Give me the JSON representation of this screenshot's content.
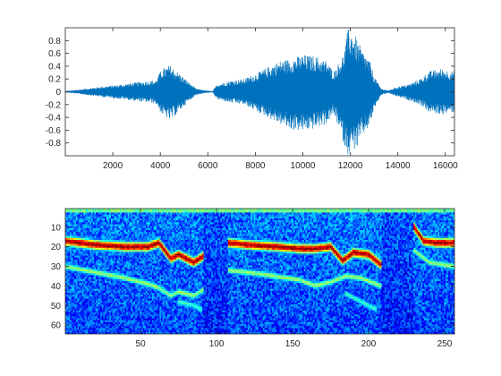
{
  "chart_data": [
    {
      "type": "line",
      "title": "",
      "xlabel": "",
      "ylabel": "",
      "xlim": [
        1,
        16384
      ],
      "ylim": [
        -1,
        1
      ],
      "grid": false,
      "color": "#0072BD",
      "xticks": [
        2000,
        4000,
        6000,
        8000,
        10000,
        12000,
        14000,
        16000
      ],
      "yticks": [
        -0.8,
        -0.6,
        -0.4,
        -0.2,
        0,
        0.2,
        0.4,
        0.6,
        0.8
      ],
      "xtick_labels": [
        "2000",
        "4000",
        "6000",
        "8000",
        "10000",
        "12000",
        "14000",
        "16000"
      ],
      "ytick_labels": [
        "-0.8",
        "-0.6",
        "-0.4",
        "-0.2",
        "0",
        "0.2",
        "0.4",
        "0.6",
        "0.8"
      ],
      "envelope": {
        "x": [
          0,
          500,
          1500,
          2500,
          3000,
          3500,
          3800,
          4050,
          4400,
          4700,
          5000,
          5500,
          5900,
          6200,
          6400,
          7000,
          7500,
          8000,
          8500,
          9000,
          9500,
          10000,
          10500,
          11000,
          11300,
          11500,
          11700,
          11900,
          12100,
          12300,
          12500,
          12800,
          13000,
          13300,
          13600,
          14000,
          14500,
          15000,
          15300,
          15800,
          16384
        ],
        "upper": [
          0.01,
          0.03,
          0.08,
          0.12,
          0.15,
          0.17,
          0.18,
          0.35,
          0.42,
          0.32,
          0.22,
          0.05,
          0.02,
          0.01,
          0.12,
          0.18,
          0.2,
          0.28,
          0.38,
          0.48,
          0.52,
          0.58,
          0.56,
          0.48,
          0.32,
          0.45,
          0.58,
          0.98,
          0.95,
          0.8,
          0.65,
          0.5,
          0.25,
          0.05,
          0.02,
          0.08,
          0.12,
          0.22,
          0.32,
          0.36,
          0.32
        ],
        "lower": [
          -0.01,
          -0.03,
          -0.08,
          -0.12,
          -0.15,
          -0.17,
          -0.18,
          -0.35,
          -0.45,
          -0.35,
          -0.22,
          -0.05,
          -0.02,
          -0.01,
          -0.12,
          -0.18,
          -0.2,
          -0.3,
          -0.4,
          -0.5,
          -0.6,
          -0.62,
          -0.58,
          -0.5,
          -0.35,
          -0.55,
          -0.8,
          -0.98,
          -0.92,
          -0.88,
          -0.7,
          -0.55,
          -0.28,
          -0.05,
          -0.02,
          -0.08,
          -0.14,
          -0.22,
          -0.32,
          -0.36,
          -0.32
        ]
      }
    },
    {
      "type": "heatmap",
      "title": "",
      "xlabel": "",
      "ylabel": "",
      "xlim": [
        0.5,
        256.5
      ],
      "ylim": [
        0.5,
        64.5
      ],
      "y_direction": "reverse",
      "colormap": "jet",
      "xticks": [
        50,
        100,
        150,
        200,
        250
      ],
      "yticks": [
        10,
        20,
        30,
        40,
        50,
        60
      ],
      "xtick_labels": [
        "50",
        "100",
        "150",
        "200",
        "250"
      ],
      "ytick_labels": [
        "10",
        "20",
        "30",
        "40",
        "50",
        "60"
      ],
      "columns": 256,
      "rows": 64,
      "ridges": [
        {
          "x": [
            0,
            20,
            40,
            55,
            62,
            70,
            75,
            85,
            91
          ],
          "y": [
            17,
            19,
            20,
            20,
            18,
            26,
            24,
            28,
            25
          ],
          "level": 1.0
        },
        {
          "x": [
            0,
            20,
            40,
            55,
            62,
            70,
            75,
            85,
            91
          ],
          "y": [
            30,
            33,
            36,
            39,
            41,
            45,
            43,
            45,
            42
          ],
          "level": 0.55
        },
        {
          "x": [
            75,
            85,
            90
          ],
          "y": [
            48,
            50,
            52
          ],
          "level": 0.45
        },
        {
          "x": [
            108,
            120,
            140,
            155,
            165,
            175,
            183,
            190,
            200,
            208
          ],
          "y": [
            18,
            19,
            20,
            21,
            21,
            20,
            27,
            23,
            24,
            29
          ],
          "level": 1.0
        },
        {
          "x": [
            108,
            130,
            155,
            165,
            175,
            185,
            195,
            208
          ],
          "y": [
            32,
            34,
            37,
            40,
            38,
            35,
            36,
            40
          ],
          "level": 0.55
        },
        {
          "x": [
            185,
            195,
            205
          ],
          "y": [
            44,
            48,
            52
          ],
          "level": 0.45
        },
        {
          "x": [
            230,
            236,
            245,
            256
          ],
          "y": [
            10,
            17,
            18,
            18
          ],
          "level": 1.0
        },
        {
          "x": [
            230,
            240,
            256
          ],
          "y": [
            22,
            28,
            30
          ],
          "level": 0.55
        }
      ],
      "voiced_ranges": [
        [
          0,
          91
        ],
        [
          108,
          208
        ],
        [
          230,
          256
        ]
      ]
    }
  ]
}
